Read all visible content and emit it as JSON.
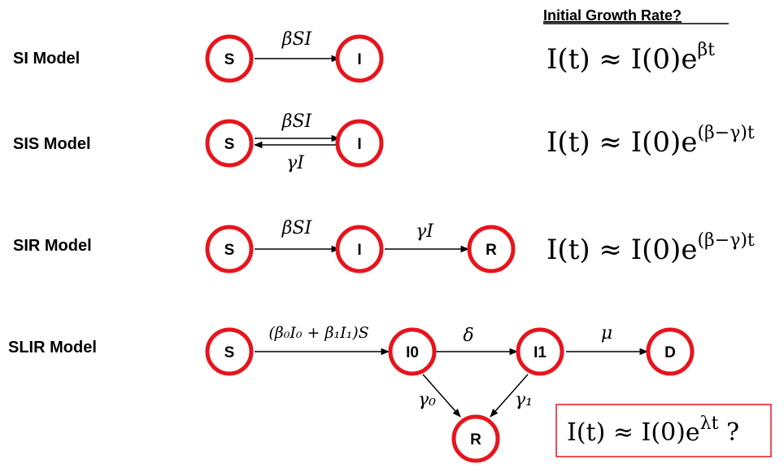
{
  "heading": "Initial Growth Rate?",
  "colors": {
    "node_stroke": "#e8141c",
    "box_stroke": "#e8141c",
    "line": "#000000"
  },
  "models": {
    "si": {
      "label": "SI Model",
      "nodes": [
        "S",
        "I"
      ],
      "rates": [
        "βSI"
      ],
      "equation": {
        "lhs": "I(t) ≈ I(0)e",
        "exp": "βt"
      }
    },
    "sis": {
      "label": "SIS Model",
      "nodes": [
        "S",
        "I"
      ],
      "rates": [
        "βSI",
        "γI"
      ],
      "equation": {
        "lhs": "I(t) ≈ I(0)e",
        "exp": "(β−γ)t"
      }
    },
    "sir": {
      "label": "SIR Model",
      "nodes": [
        "S",
        "I",
        "R"
      ],
      "rates": [
        "βSI",
        "γI"
      ],
      "equation": {
        "lhs": "I(t) ≈ I(0)e",
        "exp": "(β−γ)t"
      }
    },
    "slir": {
      "label": "SLIR Model",
      "nodes": [
        "S",
        "I0",
        "I1",
        "D",
        "R"
      ],
      "rate_main": "(β₀I₀ + β₁I₁)S",
      "rate_delta": "δ",
      "rate_mu": "μ",
      "rate_gamma0": "γ₀",
      "rate_gamma1": "γ₁",
      "equation": {
        "lhs": "I(t) ≈ I(0)e",
        "exp": "λt",
        "suffix": " ?"
      }
    }
  }
}
